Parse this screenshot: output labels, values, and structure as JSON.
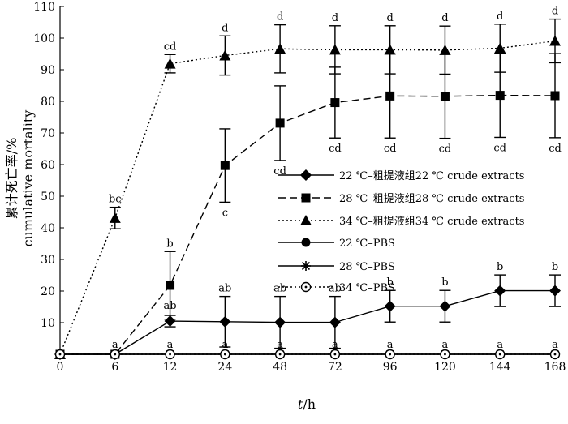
{
  "chart_data": {
    "type": "line",
    "xlabel_italic": "t",
    "xlabel_unit": "/h",
    "ylabel_cn": "累计死亡率/%",
    "ylabel_en": "cumulative mortality",
    "categories": [
      "0",
      "6",
      "12",
      "24",
      "48",
      "72",
      "96",
      "120",
      "144",
      "168"
    ],
    "ylim": [
      0,
      110
    ],
    "yticks": [
      10,
      20,
      30,
      40,
      50,
      60,
      70,
      80,
      90,
      100,
      110
    ],
    "origin_label": "0",
    "grid": false,
    "legend_position": "right",
    "series": [
      {
        "name": "22 ℃–粗提液组22 ℃ crude extracts",
        "marker": "diamond",
        "dash": "solid",
        "values": [
          0,
          0,
          10.5,
          10.3,
          10.1,
          10.1,
          15.2,
          15.2,
          20.1,
          20.1
        ],
        "errors": [
          0,
          0,
          1.8,
          8.0,
          8.2,
          8.2,
          5.0,
          5.0,
          5.0,
          5.0
        ],
        "labels": [
          "",
          "",
          "ab",
          "ab",
          "ab",
          "ab",
          "b",
          "b",
          "b",
          "b"
        ]
      },
      {
        "name": "28 ℃–粗提液组28 ℃ crude extracts",
        "marker": "square",
        "dash": "longdash",
        "values": [
          0,
          0,
          21.8,
          59.7,
          73.1,
          79.6,
          81.7,
          81.6,
          81.9,
          81.8
        ],
        "errors": [
          0,
          0,
          10.7,
          11.6,
          11.8,
          11.2,
          13.3,
          13.3,
          13.3,
          13.3
        ],
        "labels": [
          "",
          "",
          "b",
          "c",
          "cd",
          "cd",
          "cd",
          "cd",
          "cd",
          "cd"
        ]
      },
      {
        "name": "34 ℃–粗提液组34 ℃ crude extracts",
        "marker": "triangle",
        "dash": "dotted",
        "values": [
          0,
          43.1,
          91.9,
          94.5,
          96.6,
          96.3,
          96.3,
          96.2,
          96.8,
          99.1
        ],
        "errors": [
          0,
          3.4,
          2.9,
          6.2,
          7.6,
          7.6,
          7.6,
          7.6,
          7.6,
          6.9
        ],
        "labels": [
          "",
          "bc",
          "cd",
          "d",
          "d",
          "d",
          "d",
          "d",
          "d",
          "d"
        ]
      },
      {
        "name": "22 ℃–PBS",
        "marker": "circle",
        "dash": "solid",
        "values": [
          0,
          0,
          0,
          0,
          0,
          0,
          0,
          0,
          0,
          0
        ],
        "errors": [
          0,
          0,
          0,
          0,
          0,
          0,
          0,
          0,
          0,
          0
        ],
        "labels": [
          "",
          "",
          "",
          "",
          "",
          "",
          "",
          "",
          "",
          ""
        ]
      },
      {
        "name": "28 ℃–PBS",
        "marker": "star",
        "dash": "solid",
        "values": [
          0,
          0,
          0,
          0,
          0,
          0,
          0,
          0,
          0,
          0
        ],
        "errors": [
          0,
          0,
          0,
          0,
          0,
          0,
          0,
          0,
          0,
          0
        ],
        "labels": [
          "",
          "",
          "",
          "",
          "",
          "",
          "",
          "",
          "",
          ""
        ]
      },
      {
        "name": "34 ℃–PBS",
        "marker": "hollow-circle",
        "dash": "dotted",
        "values": [
          0,
          0,
          0,
          0,
          0,
          0,
          0,
          0,
          0,
          0
        ],
        "errors": [
          0,
          0,
          0,
          0,
          0,
          0,
          0,
          0,
          0,
          0
        ],
        "labels": [
          "",
          "",
          "",
          "",
          "",
          "",
          "",
          "",
          "",
          ""
        ]
      }
    ],
    "baseline_labels": [
      "",
      "a",
      "a",
      "a",
      "a",
      "a",
      "a",
      "a",
      "a",
      "a"
    ]
  }
}
